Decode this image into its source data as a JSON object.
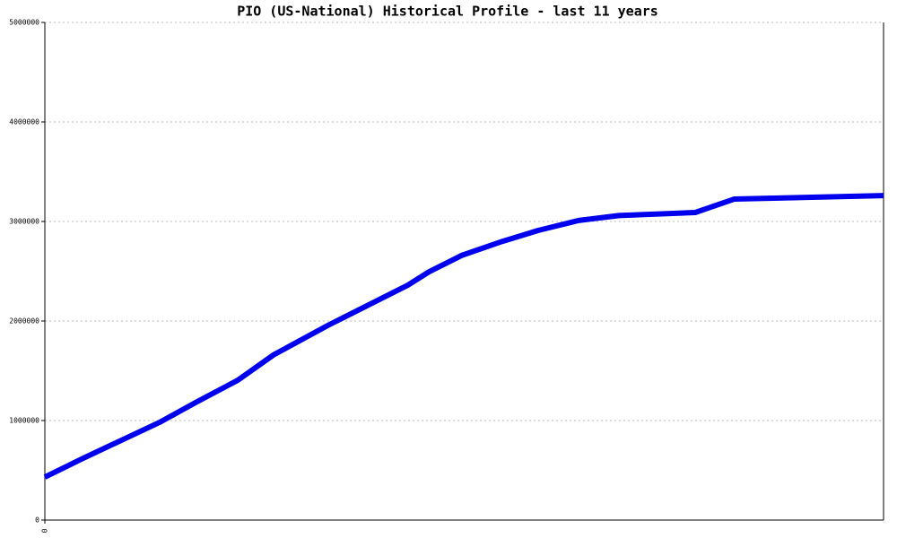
{
  "chart_data": {
    "type": "line",
    "title": "PIO (US-National) Historical Profile - last 11 years",
    "x": [
      0,
      0.5,
      1.0,
      1.5,
      2.0,
      2.53,
      3.0,
      3.71,
      4.76,
      5.04,
      5.47,
      6.0,
      6.47,
      7.0,
      7.53,
      8.53,
      9.04,
      11.0
    ],
    "series": [
      {
        "color": "#0000ee",
        "values": [
          432000,
          620000,
          800000,
          980000,
          1190000,
          1405000,
          1660000,
          1955000,
          2360000,
          2495000,
          2660000,
          2800000,
          2910000,
          3010000,
          3060000,
          3090000,
          3225000,
          3260000
        ]
      }
    ],
    "xlim": [
      0,
      11
    ],
    "xticks": [
      0
    ],
    "ylim": [
      0,
      5000000
    ],
    "yticks": [
      0,
      1000000,
      2000000,
      3000000,
      4000000,
      5000000
    ],
    "grid": true
  }
}
